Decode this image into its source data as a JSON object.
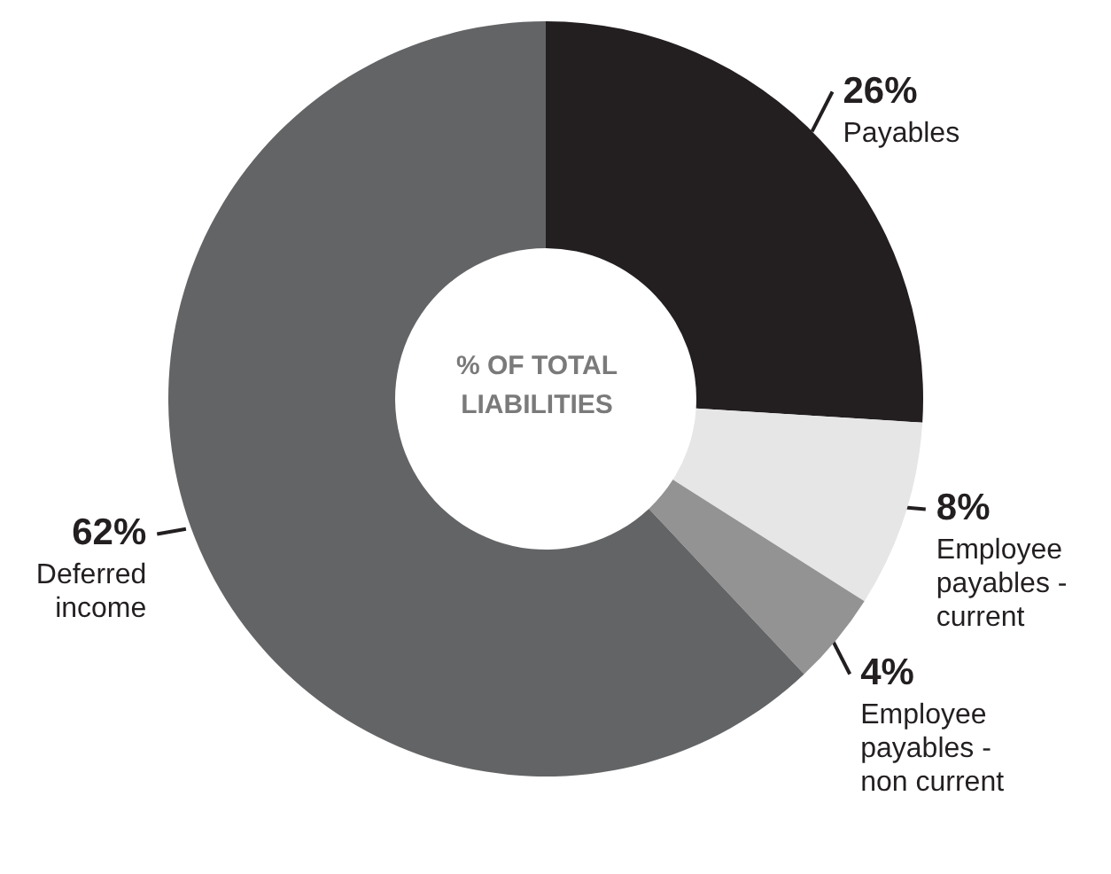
{
  "chart_data": {
    "type": "donut",
    "title": "% OF TOTAL LIABILITIES",
    "categories": [
      "Payables",
      "Employee payables - current",
      "Employee payables - non current",
      "Deferred income"
    ],
    "values": [
      26,
      8,
      4,
      62
    ],
    "value_labels": [
      "26%",
      "8%",
      "4%",
      "62%"
    ],
    "colors": [
      "#231f20",
      "#e6e6e6",
      "#939393",
      "#636466"
    ],
    "legend": false
  }
}
